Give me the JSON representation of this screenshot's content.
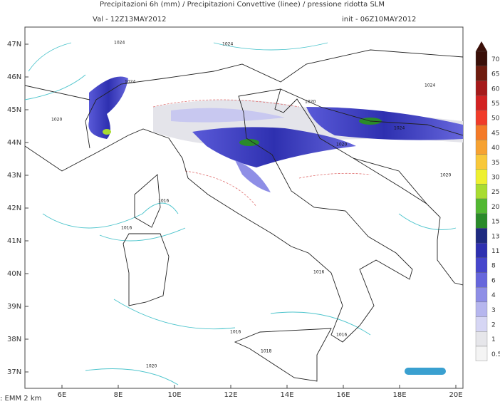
{
  "header": {
    "title": "Precipitazioni 6h (mm) / Precipitazioni Convettive (linee) / pressione ridotta SLM",
    "valid": "Val -  12Z13MAY2012",
    "init": "init - 06Z10MAY2012"
  },
  "map": {
    "lat_labels": [
      "47N",
      "46N",
      "45N",
      "44N",
      "43N",
      "42N",
      "41N",
      "40N",
      "39N",
      "38N",
      "37N"
    ],
    "lon_labels": [
      "6E",
      "8E",
      "10E",
      "12E",
      "14E",
      "16E",
      "18E",
      "20E"
    ],
    "isobar_labels": [
      "1024",
      "1024",
      "1020",
      "1024",
      "1020",
      "1024",
      "1020",
      "1016",
      "1016",
      "1016",
      "1016",
      "1016",
      "1018",
      "1020",
      "1024",
      "1020"
    ]
  },
  "colorbar": {
    "levels": [
      70,
      65,
      60,
      55,
      50,
      45,
      40,
      35,
      30,
      25,
      20,
      15,
      13,
      11,
      8,
      6,
      4,
      3,
      2,
      1,
      0.5
    ],
    "colors": [
      "#3a0f08",
      "#6e1b0e",
      "#a51a1a",
      "#d22222",
      "#f03c2a",
      "#f47a28",
      "#f6a232",
      "#f8c83a",
      "#eef030",
      "#a8dc30",
      "#52b832",
      "#2a8a2a",
      "#1e2a80",
      "#2e30b0",
      "#4646cc",
      "#6666dc",
      "#8e8ee6",
      "#b6b6ee",
      "#d6d6f4",
      "#e6e6ea",
      "#f4f4f4"
    ]
  },
  "footer": ": EMM 2 km"
}
